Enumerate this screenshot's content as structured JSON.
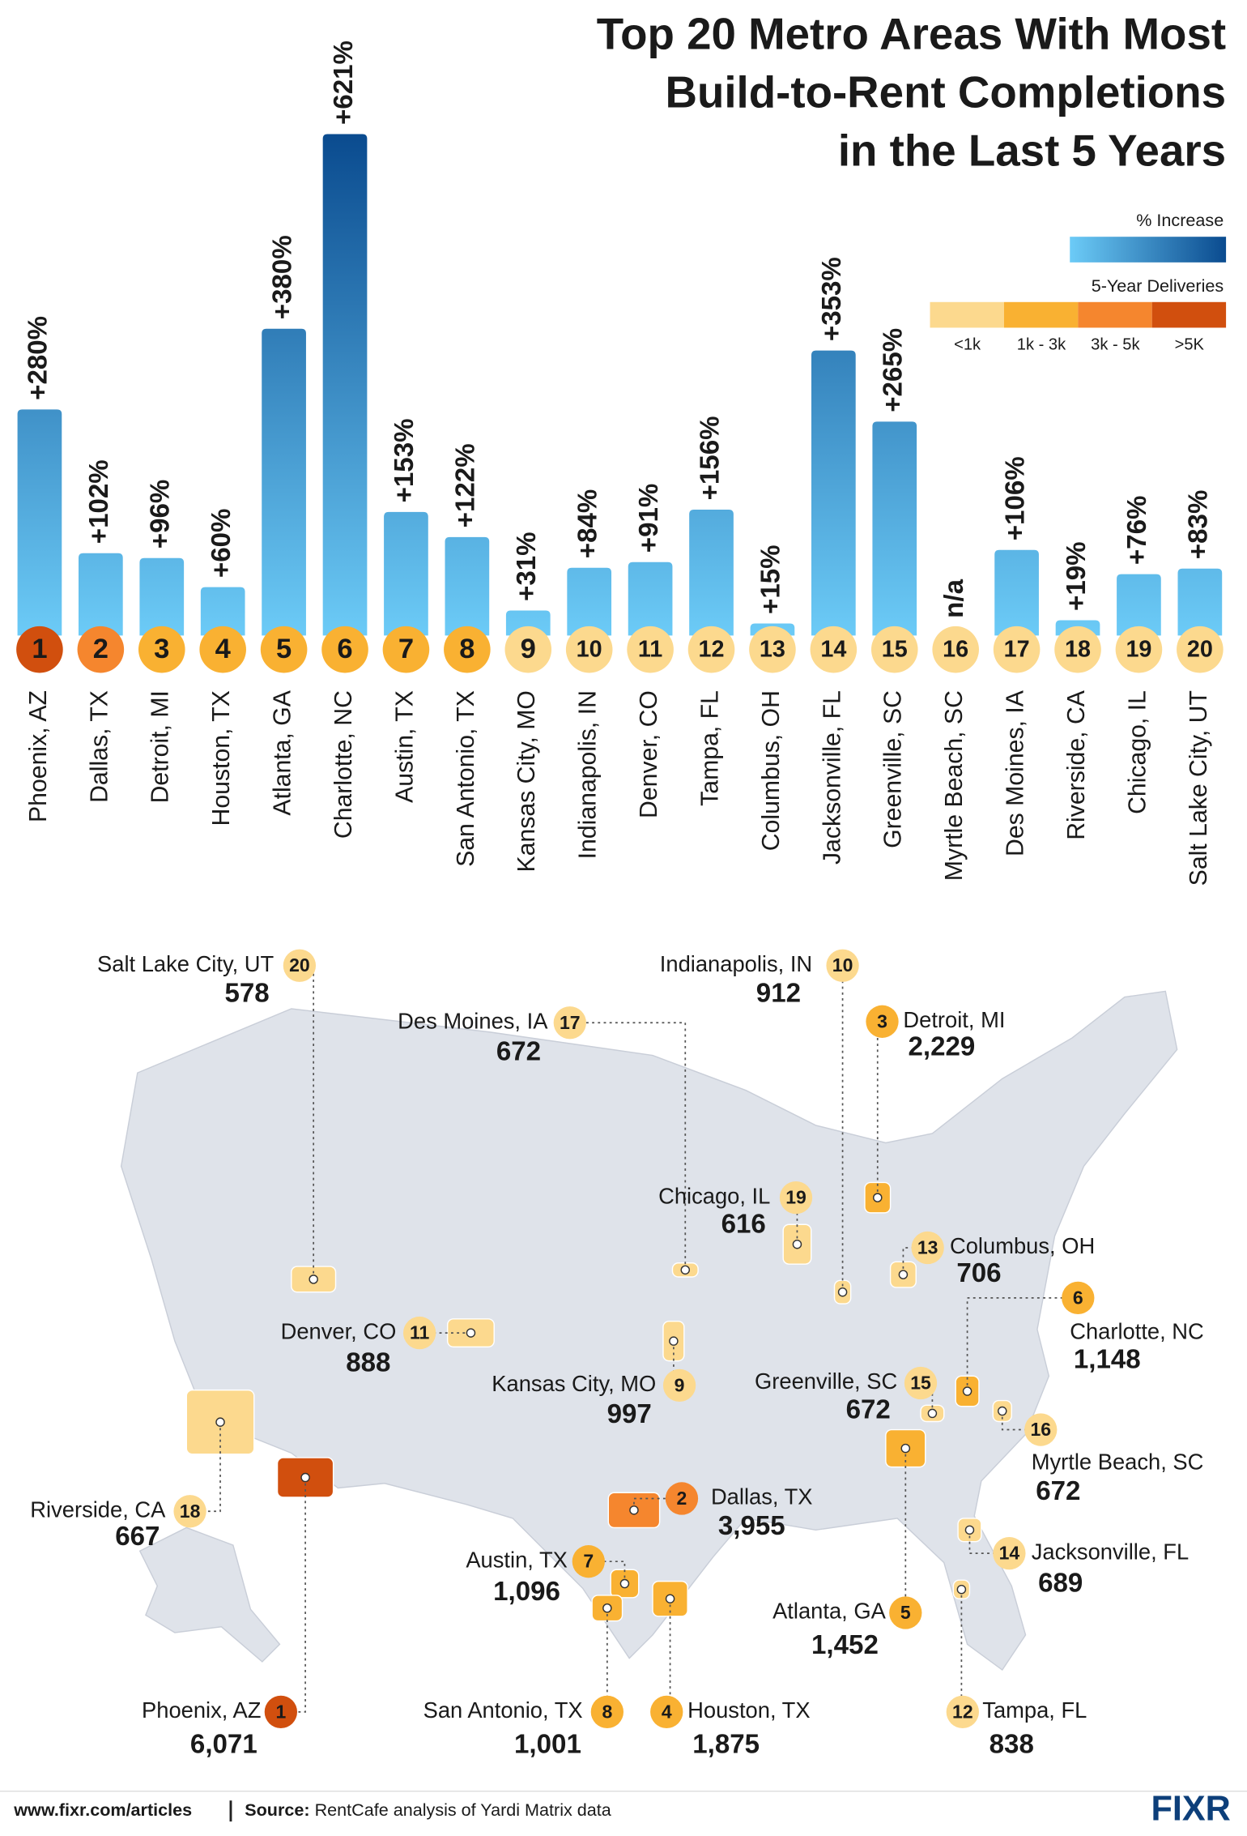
{
  "chart_data": [
    {
      "type": "bar",
      "title": [
        "Top 20 Metro Areas With Most",
        "Build-to-Rent Completions",
        "in the Last 5 Years"
      ],
      "categories": [
        "Phoenix, AZ",
        "Dallas, TX",
        "Detroit, MI",
        "Houston, TX",
        "Atlanta, GA",
        "Charlotte, NC",
        "Austin, TX",
        "San Antonio, TX",
        "Kansas City, MO",
        "Indianapolis, IN",
        "Denver, CO",
        "Tampa, FL",
        "Columbus, OH",
        "Jacksonville, FL",
        "Greenville, SC",
        "Myrtle Beach, SC",
        "Des Moines, IA",
        "Riverside, CA",
        "Chicago, IL",
        "Salt Lake City, UT"
      ],
      "values": [
        280,
        102,
        96,
        60,
        380,
        621,
        153,
        122,
        31,
        84,
        91,
        156,
        15,
        353,
        265,
        null,
        106,
        19,
        76,
        83
      ],
      "value_labels": [
        "+280%",
        "+102%",
        "+96%",
        "+60%",
        "+380%",
        "+621%",
        "+153%",
        "+122%",
        "+31%",
        "+84%",
        "+91%",
        "+156%",
        "+15%",
        "+353%",
        "+265%",
        "n/a",
        "+106%",
        "+19%",
        "+76%",
        "+83%"
      ],
      "ranks": [
        1,
        2,
        3,
        4,
        5,
        6,
        7,
        8,
        9,
        10,
        11,
        12,
        13,
        14,
        15,
        16,
        17,
        18,
        19,
        20
      ],
      "ylim": [
        0,
        621
      ],
      "gradient": {
        "title": "% Increase",
        "colors": [
          "#6ccbf7",
          "#0a4b8f"
        ]
      },
      "tiers": {
        "title": "5-Year Deliveries",
        "labels": [
          "<1k",
          "1k - 3k",
          "3k - 5k",
          ">5K"
        ],
        "colors": [
          "#fcd98e",
          "#f9b132",
          "#f5862e",
          "#d14f0e"
        ]
      }
    },
    {
      "type": "map",
      "categories": [
        "Phoenix, AZ",
        "Dallas, TX",
        "Detroit, MI",
        "Houston, TX",
        "Atlanta, GA",
        "Charlotte, NC",
        "Austin, TX",
        "San Antonio, TX",
        "Kansas City, MO",
        "Indianapolis, IN",
        "Denver, CO",
        "Tampa, FL",
        "Columbus, OH",
        "Jacksonville, FL",
        "Greenville, SC",
        "Myrtle Beach, SC",
        "Des Moines, IA",
        "Riverside, CA",
        "Chicago, IL",
        "Salt Lake City, UT"
      ],
      "values": [
        6071,
        3955,
        2229,
        1875,
        1452,
        1148,
        1096,
        1001,
        997,
        912,
        888,
        838,
        706,
        689,
        672,
        672,
        672,
        667,
        616,
        578
      ],
      "value_labels": [
        "6,071",
        "3,955",
        "2,229",
        "1,875",
        "1,452",
        "1,148",
        "1,096",
        "1,001",
        "997",
        "912",
        "888",
        "838",
        "706",
        "689",
        "672",
        "672",
        "672",
        "667",
        "616",
        "578"
      ],
      "ranks": [
        1,
        2,
        3,
        4,
        5,
        6,
        7,
        8,
        9,
        10,
        11,
        12,
        13,
        14,
        15,
        16,
        17,
        18,
        19,
        20
      ],
      "colors": [
        "#d14f0e",
        "#f5862e",
        "#f9b132",
        "#f9b132",
        "#f9b132",
        "#f9b132",
        "#f9b132",
        "#f9b132",
        "#fcd98e",
        "#fcd98e",
        "#fcd98e",
        "#fcd98e",
        "#fcd98e",
        "#fcd98e",
        "#fcd98e",
        "#fcd98e",
        "#fcd98e",
        "#fcd98e",
        "#fcd98e",
        "#fcd98e"
      ]
    }
  ],
  "footer": {
    "url": "www.fixr.com/articles",
    "source_label": "Source:",
    "source": "RentCafe analysis of Yardi Matrix data",
    "logo": "FIXR"
  }
}
